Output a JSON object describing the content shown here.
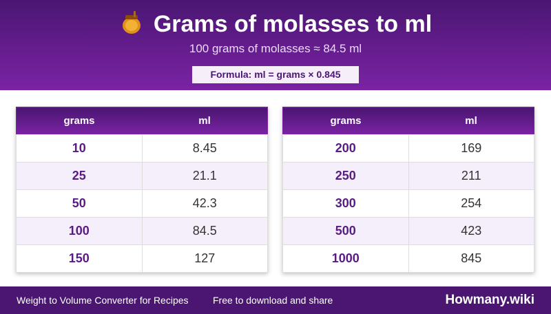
{
  "header": {
    "title": "Grams of molasses to ml",
    "subtitle": "100 grams of molasses ≈ 84.5 ml",
    "formula": "Formula: ml = grams × 0.845"
  },
  "tables": [
    {
      "columns": [
        "grams",
        "ml"
      ],
      "rows": [
        [
          10,
          8.45
        ],
        [
          25,
          21.1
        ],
        [
          50,
          42.3
        ],
        [
          100,
          84.5
        ],
        [
          150,
          127
        ]
      ]
    },
    {
      "columns": [
        "grams",
        "ml"
      ],
      "rows": [
        [
          200,
          169
        ],
        [
          250,
          211
        ],
        [
          300,
          254
        ],
        [
          500,
          423
        ],
        [
          1000,
          845
        ]
      ]
    }
  ],
  "footer": {
    "left": "Weight to Volume Converter for Recipes",
    "middle": "Free to download and share",
    "brand": "Howmany.wiki"
  }
}
